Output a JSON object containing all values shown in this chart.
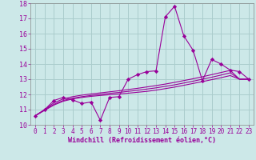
{
  "xlabel": "Windchill (Refroidissement éolien,°C)",
  "background_color": "#cce8e8",
  "line_color": "#990099",
  "grid_color": "#aacccc",
  "text_color": "#990099",
  "xlim": [
    -0.5,
    23.5
  ],
  "ylim": [
    10,
    18
  ],
  "yticks": [
    10,
    11,
    12,
    13,
    14,
    15,
    16,
    17,
    18
  ],
  "xticks": [
    0,
    1,
    2,
    3,
    4,
    5,
    6,
    7,
    8,
    9,
    10,
    11,
    12,
    13,
    14,
    15,
    16,
    17,
    18,
    19,
    20,
    21,
    22,
    23
  ],
  "main_series": [
    10.6,
    11.0,
    11.6,
    11.8,
    11.65,
    11.4,
    11.5,
    10.3,
    11.8,
    11.85,
    13.0,
    13.3,
    13.5,
    13.55,
    17.1,
    17.8,
    15.85,
    14.9,
    12.9,
    14.3,
    14.0,
    13.6,
    13.5,
    13.0
  ],
  "smooth_series": [
    [
      10.6,
      10.95,
      11.3,
      11.55,
      11.7,
      11.8,
      11.87,
      11.93,
      11.98,
      12.03,
      12.08,
      12.14,
      12.2,
      12.28,
      12.38,
      12.48,
      12.6,
      12.72,
      12.84,
      12.97,
      13.1,
      13.24,
      13.0,
      13.0
    ],
    [
      10.6,
      10.98,
      11.35,
      11.6,
      11.75,
      11.85,
      11.93,
      12.0,
      12.07,
      12.13,
      12.2,
      12.27,
      12.35,
      12.43,
      12.53,
      12.63,
      12.75,
      12.87,
      13.0,
      13.13,
      13.27,
      13.42,
      13.0,
      13.0
    ],
    [
      10.6,
      11.0,
      11.45,
      11.7,
      11.85,
      11.95,
      12.03,
      12.1,
      12.17,
      12.24,
      12.32,
      12.4,
      12.49,
      12.58,
      12.68,
      12.79,
      12.91,
      13.03,
      13.16,
      13.3,
      13.44,
      13.58,
      13.0,
      13.0
    ]
  ]
}
